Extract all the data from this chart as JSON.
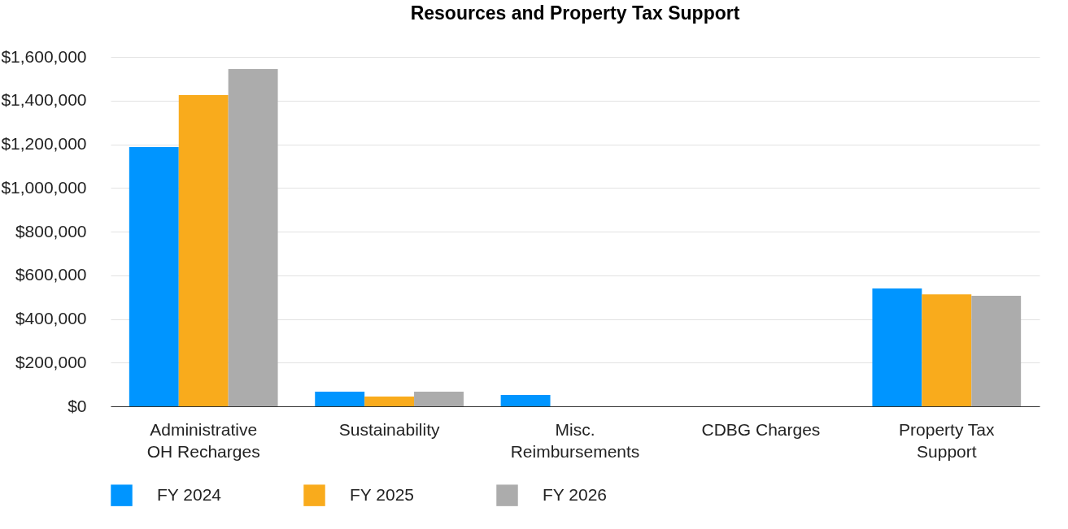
{
  "chart_data": {
    "type": "bar",
    "title": "Resources and Property Tax Support",
    "categories": [
      "Administrative OH Recharges",
      "Sustainability",
      "Misc. Reimbursements",
      "CDBG Charges",
      "Property Tax Support"
    ],
    "series": [
      {
        "name": "FY 2024",
        "color": "#0095ff",
        "values": [
          1187000,
          67000,
          52000,
          0,
          540000
        ]
      },
      {
        "name": "FY 2025",
        "color": "#f9ab1c",
        "values": [
          1425000,
          45000,
          0,
          0,
          513000
        ]
      },
      {
        "name": "FY 2026",
        "color": "#acacac",
        "values": [
          1544000,
          67000,
          0,
          0,
          506000
        ]
      }
    ],
    "ylim": [
      0,
      1600000
    ],
    "yticks": [
      {
        "value": 0,
        "label": "$0"
      },
      {
        "value": 200000,
        "label": "$200,000"
      },
      {
        "value": 400000,
        "label": "$400,000"
      },
      {
        "value": 600000,
        "label": "$600,000"
      },
      {
        "value": 800000,
        "label": "$800,000"
      },
      {
        "value": 1000000,
        "label": "$1,000,000"
      },
      {
        "value": 1200000,
        "label": "$1,200,000"
      },
      {
        "value": 1400000,
        "label": "$1,400,000"
      },
      {
        "value": 1600000,
        "label": "$1,600,000"
      }
    ],
    "grid": "y",
    "legend": "bottom"
  }
}
